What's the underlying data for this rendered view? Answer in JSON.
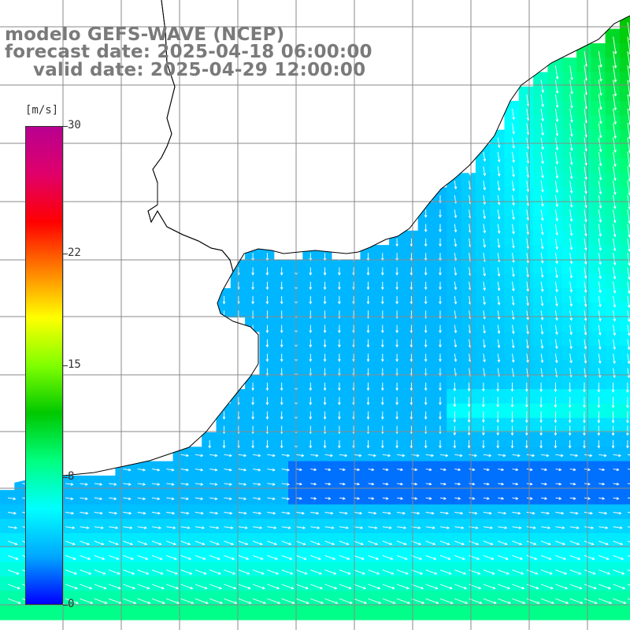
{
  "title": {
    "line1": "modelo GEFS-WAVE (NCEP)",
    "line2": "forecast date: 2025-04-18 06:00:00",
    "line3": "valid date: 2025-04-29 12:00:00"
  },
  "colorbar": {
    "units": "[m/s]",
    "min": 0,
    "max": 30,
    "ticks": [
      {
        "label": "30",
        "value": 30
      },
      {
        "label": "22",
        "value": 22
      },
      {
        "label": "15",
        "value": 15
      },
      {
        "label": "8",
        "value": 8
      },
      {
        "label": "0",
        "value": 0
      }
    ],
    "gradient_stops": [
      "#0000ff",
      "#00a8ff",
      "#00ffff",
      "#00ff7f",
      "#00c800",
      "#80ff00",
      "#ffff00",
      "#ff8000",
      "#ff0000",
      "#e0006a",
      "#b80090"
    ]
  },
  "colors": {
    "land": "#ffffff",
    "coastline": "#000000",
    "grid": "#8a8a8a",
    "arrow": "#ffffff",
    "title_text": "#7a7a7a"
  },
  "map": {
    "grid_spacing_deg": 1,
    "field_description": "wind speed with direction arrows over South Atlantic near Uruguay / Rio de la Plata"
  }
}
